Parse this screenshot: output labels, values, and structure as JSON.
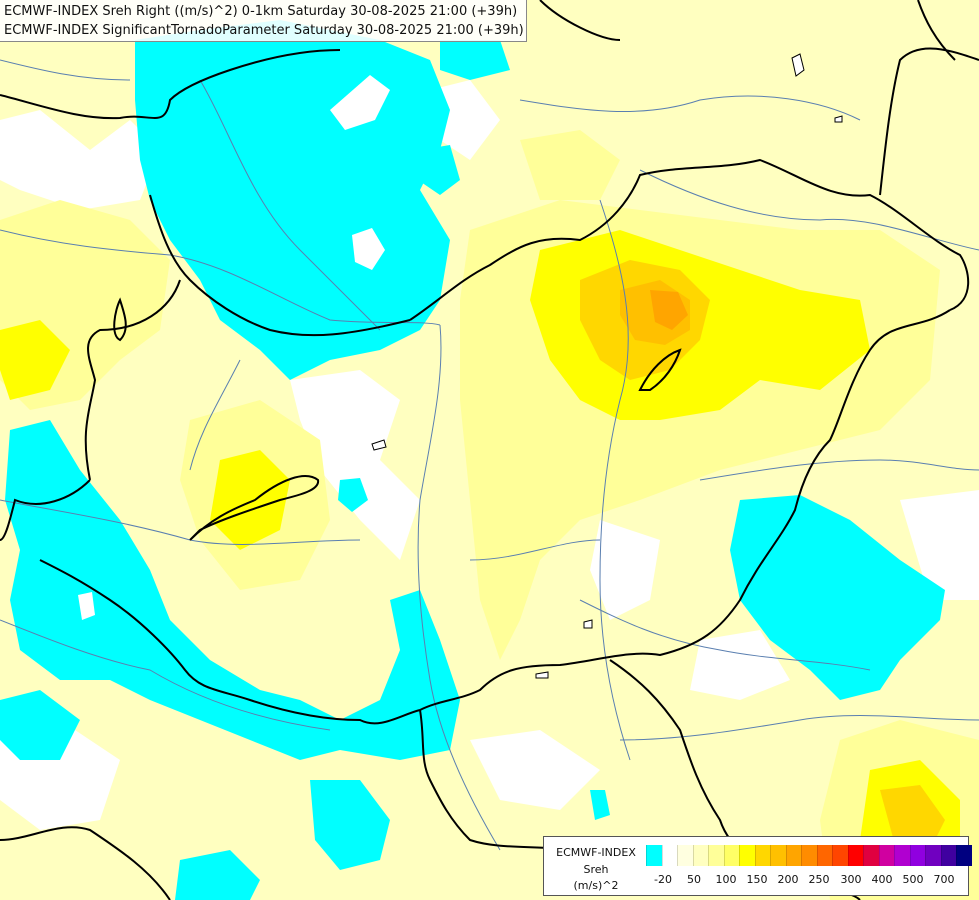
{
  "title": {
    "line1": "ECMWF-INDEX Sreh Right ((m/s)^2) 0-1km Saturday 30-08-2025 21:00 (+39h)",
    "line2": "ECMWF-INDEX SignificantTornadoParameter Saturday 30-08-2025 21:00 (+39h)"
  },
  "legend": {
    "name": "ECMWF-INDEX",
    "variable": "Sreh",
    "unit": "(m/s)^2",
    "tick_labels": [
      "-20",
      "50",
      "100",
      "150",
      "200",
      "250",
      "300",
      "400",
      "500",
      "700"
    ],
    "swatch_colors": [
      "#00ffff",
      "#ffffff",
      "#ffffe0",
      "#ffffc0",
      "#ffff99",
      "#ffff66",
      "#ffff00",
      "#ffd700",
      "#ffc000",
      "#ffa500",
      "#ff8c00",
      "#ff6600",
      "#ff4500",
      "#ff0000",
      "#e00040",
      "#d000a0",
      "#b000d0",
      "#9000e0",
      "#7000c0",
      "#4000a0",
      "#000080"
    ]
  },
  "colors": {
    "cyan": "#00ffff",
    "pale_yellow": "#ffffc0",
    "light_yellow": "#ffff99",
    "yellow": "#ffff00",
    "gold": "#ffd700",
    "orange": "#ffa500",
    "border": "#000000",
    "river": "#5a7fb0"
  }
}
